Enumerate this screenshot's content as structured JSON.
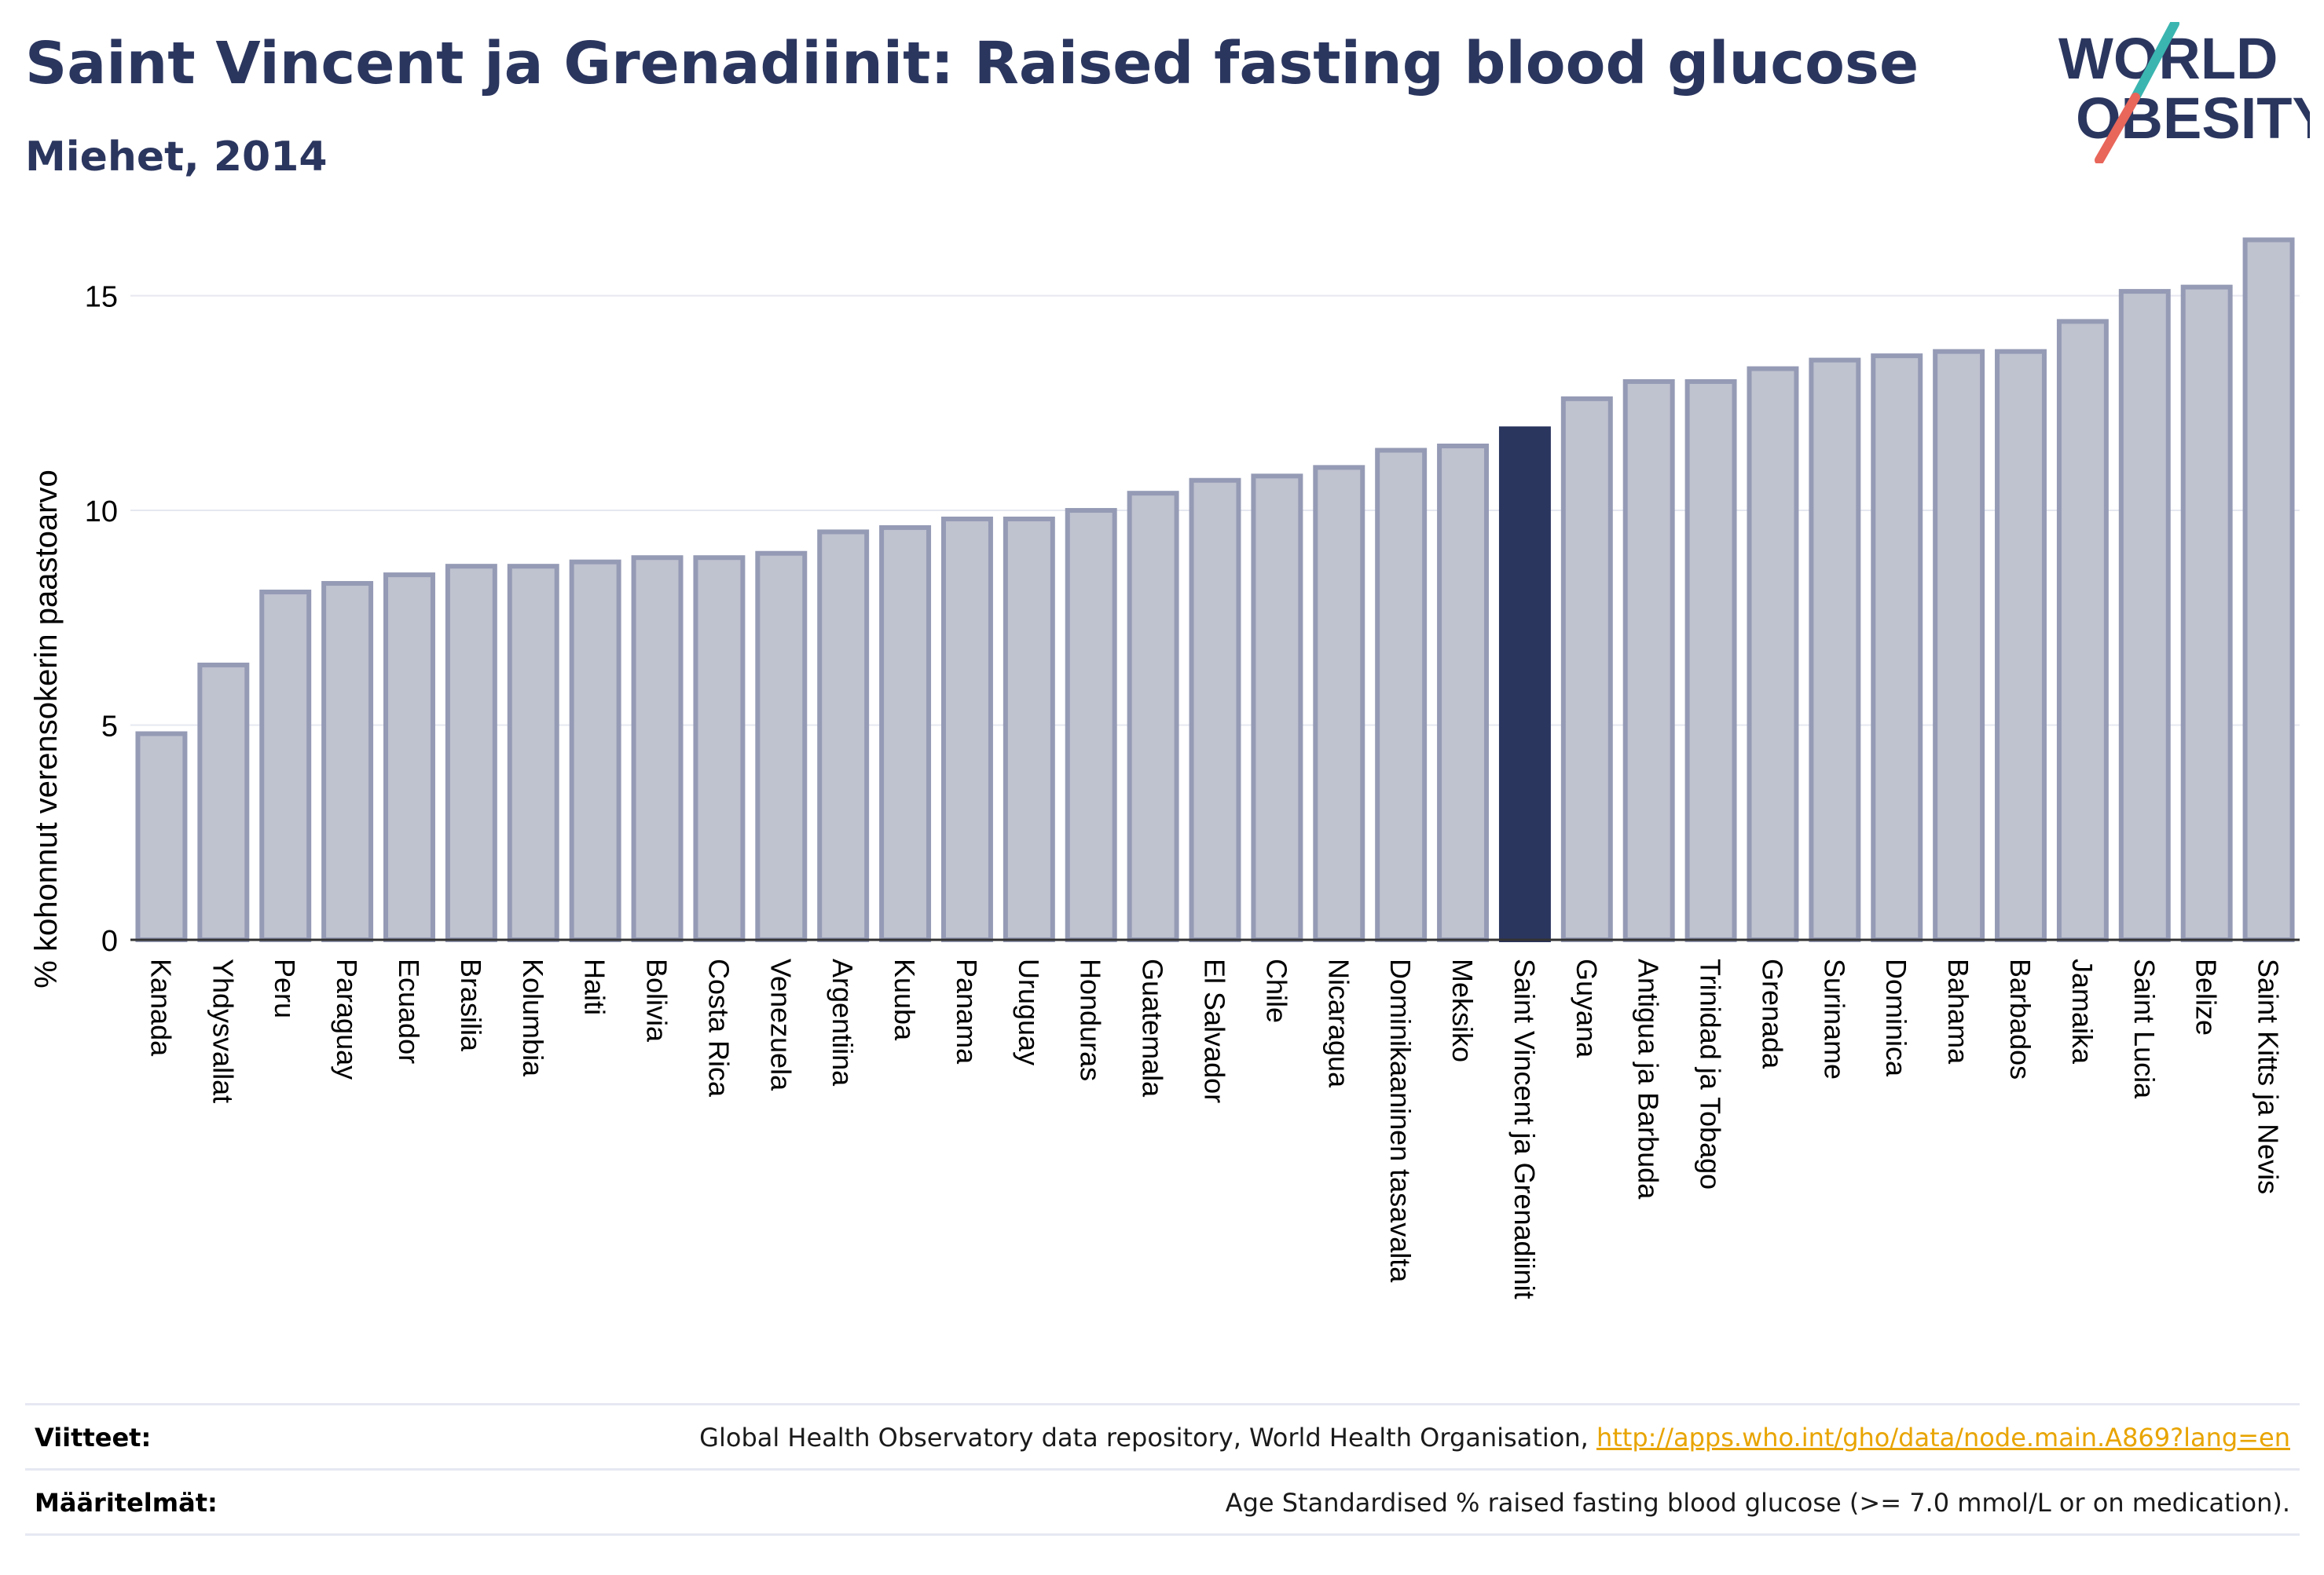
{
  "header": {
    "title": "Saint Vincent ja Grenadiinit: Raised fasting blood glucose",
    "subtitle": "Miehet, 2014"
  },
  "logo": {
    "line1": "WORLD",
    "line2": "OBESITY",
    "text_color": "#2b365f",
    "slash_top_color": "#3bb5b0",
    "slash_bottom_color": "#e8665a"
  },
  "chart_data": {
    "type": "bar",
    "title": "Saint Vincent ja Grenadiinit: Raised fasting blood glucose",
    "subtitle": "Miehet, 2014",
    "xlabel": "",
    "ylabel": "% kohonnut verensokerin paastoarvo",
    "ylim": [
      0,
      16.4
    ],
    "yticks": [
      0,
      5,
      10,
      15
    ],
    "grid": true,
    "highlight": "Saint Vincent ja Grenadiinit",
    "colors": {
      "bar": "#bfc2cf",
      "bar_border": "#959bb5",
      "highlight": "#2b365f",
      "grid": "#e6e8f0",
      "axis": "#333333"
    },
    "categories": [
      "Kanada",
      "Yhdysvallat",
      "Peru",
      "Paraguay",
      "Ecuador",
      "Brasilia",
      "Kolumbia",
      "Haiti",
      "Bolivia",
      "Costa Rica",
      "Venezuela",
      "Argentiina",
      "Kuuba",
      "Panama",
      "Uruguay",
      "Honduras",
      "Guatemala",
      "El Salvador",
      "Chile",
      "Nicaragua",
      "Dominikaaninen tasavalta",
      "Meksiko",
      "Saint Vincent ja Grenadiinit",
      "Guyana",
      "Antigua ja Barbuda",
      "Trinidad ja Tobago",
      "Grenada",
      "Suriname",
      "Dominica",
      "Bahama",
      "Barbados",
      "Jamaika",
      "Saint Lucia",
      "Belize",
      "Saint Kitts ja Nevis"
    ],
    "values": [
      4.8,
      6.4,
      8.1,
      8.3,
      8.5,
      8.7,
      8.7,
      8.8,
      8.9,
      8.9,
      9.0,
      9.5,
      9.6,
      9.8,
      9.8,
      10.0,
      10.4,
      10.7,
      10.8,
      11.0,
      11.4,
      11.5,
      11.9,
      12.6,
      13.0,
      13.0,
      13.3,
      13.5,
      13.6,
      13.7,
      13.7,
      14.4,
      15.1,
      15.2,
      16.3
    ]
  },
  "footer": {
    "references_label": "Viitteet:",
    "references_text": "Global Health Observatory data repository, World Health Organisation, ",
    "references_link": "http://apps.who.int/gho/data/node.main.A869?lang=en",
    "definitions_label": "Määritelmät:",
    "definitions_text": "Age Standardised % raised fasting blood glucose (>= 7.0 mmol/L or on medication)."
  }
}
